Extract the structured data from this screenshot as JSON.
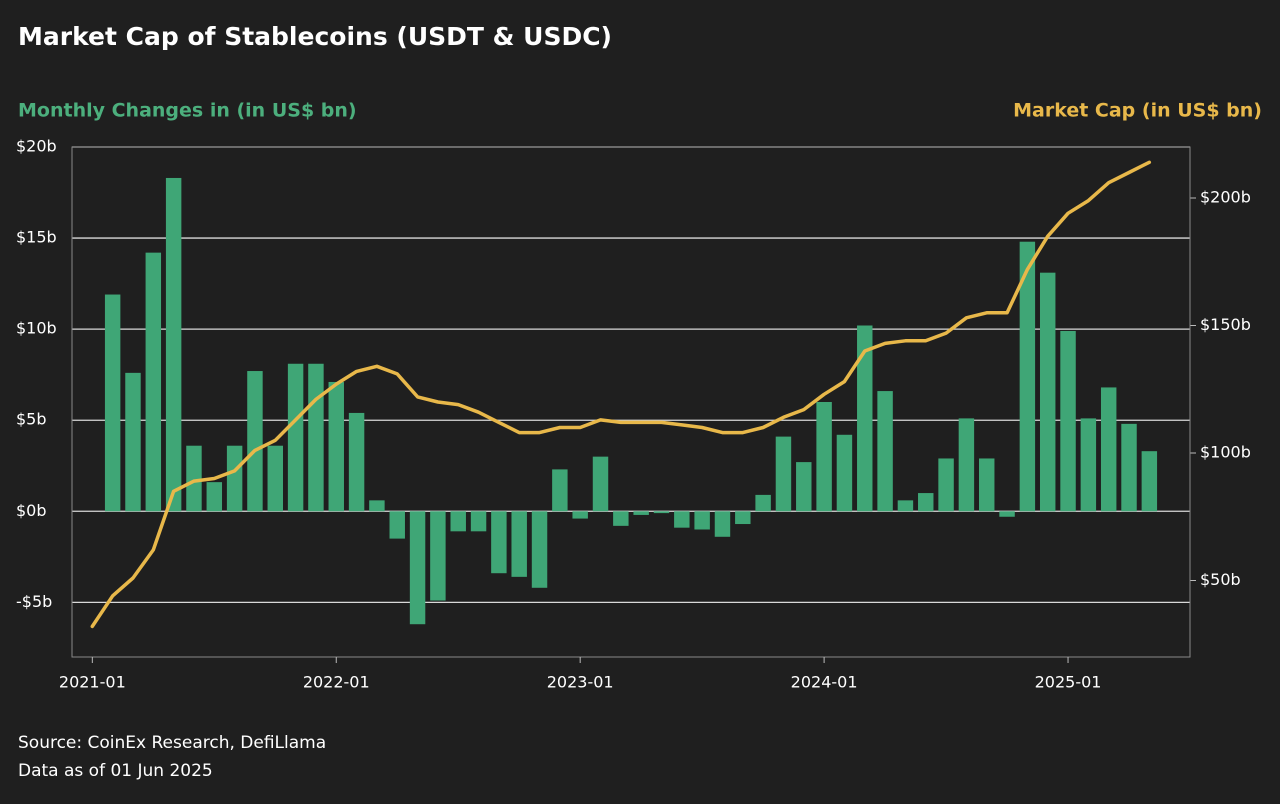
{
  "chart_data": {
    "type": "bar_line",
    "title": "Market Cap of Stablecoins (USDT & USDC)",
    "y_label": "Monthly Changes in (in US$ bn)",
    "y2_label": "Market Cap (in US$ bn)",
    "source": "Source: CoinEx Research, DefiLlama",
    "note": "Data as of 01 Jun 2025",
    "x": [
      "2021-01",
      "2021-02",
      "2021-03",
      "2021-04",
      "2021-05",
      "2021-06",
      "2021-07",
      "2021-08",
      "2021-09",
      "2021-10",
      "2021-11",
      "2021-12",
      "2022-01",
      "2022-02",
      "2022-03",
      "2022-04",
      "2022-05",
      "2022-06",
      "2022-07",
      "2022-08",
      "2022-09",
      "2022-10",
      "2022-11",
      "2022-12",
      "2023-01",
      "2023-02",
      "2023-03",
      "2023-04",
      "2023-05",
      "2023-06",
      "2023-07",
      "2023-08",
      "2023-09",
      "2023-10",
      "2023-11",
      "2023-12",
      "2024-01",
      "2024-02",
      "2024-03",
      "2024-04",
      "2024-05",
      "2024-06",
      "2024-07",
      "2024-08",
      "2024-09",
      "2024-10",
      "2024-11",
      "2024-12",
      "2025-01",
      "2025-02",
      "2025-03",
      "2025-04",
      "2025-05"
    ],
    "xlim": [
      "2020-12",
      "2025-07"
    ],
    "xticks": [
      "2021-01",
      "2022-01",
      "2023-01",
      "2024-01",
      "2025-01"
    ],
    "series": [
      {
        "name": "Monthly Changes",
        "type": "bar",
        "color": "#3fa676",
        "axis": "y",
        "values": [
          null,
          11.9,
          7.6,
          14.2,
          18.3,
          3.6,
          1.6,
          3.6,
          7.7,
          3.6,
          8.1,
          8.1,
          7.1,
          5.4,
          0.6,
          -1.5,
          -6.2,
          -4.9,
          -1.1,
          -1.1,
          -3.4,
          -3.6,
          -4.2,
          2.3,
          -0.4,
          3.0,
          -0.8,
          -0.2,
          -0.1,
          -0.9,
          -1.0,
          -1.4,
          -0.7,
          0.9,
          4.1,
          2.7,
          6.0,
          4.2,
          10.2,
          6.6,
          0.6,
          1.0,
          2.9,
          5.1,
          2.9,
          -0.3,
          14.8,
          13.1,
          9.9,
          5.1,
          6.8,
          4.8,
          3.3
        ]
      },
      {
        "name": "Market Cap",
        "type": "line",
        "color": "#e8b84a",
        "axis": "y2",
        "values": [
          32,
          44,
          51,
          62,
          85,
          89,
          90,
          93,
          101,
          105,
          113,
          121,
          127,
          132,
          134,
          131,
          122,
          120,
          119,
          116,
          112,
          108,
          108,
          110,
          110,
          113,
          112,
          112,
          112,
          111,
          110,
          108,
          108,
          110,
          114,
          117,
          123,
          128,
          140,
          143,
          144,
          144,
          147,
          153,
          155,
          155,
          172,
          185,
          194,
          199,
          206,
          210,
          214
        ]
      }
    ],
    "ylim": [
      -8,
      20
    ],
    "yticks": [
      {
        "value": -5,
        "label": "-$5b"
      },
      {
        "value": 0,
        "label": "$0b"
      },
      {
        "value": 5,
        "label": "$5b"
      },
      {
        "value": 10,
        "label": "$10b"
      },
      {
        "value": 15,
        "label": "$15b"
      },
      {
        "value": 20,
        "label": "$20b"
      }
    ],
    "y2lim": [
      20,
      220
    ],
    "y2ticks": [
      {
        "value": 50,
        "label": "$50b"
      },
      {
        "value": 100,
        "label": "$100b"
      },
      {
        "value": 150,
        "label": "$150b"
      },
      {
        "value": 200,
        "label": "$200b"
      }
    ],
    "grid": true
  }
}
